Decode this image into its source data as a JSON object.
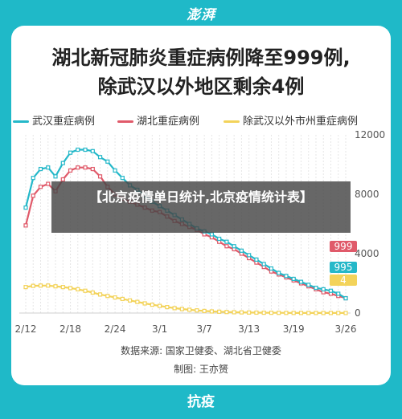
{
  "brand": "澎湃",
  "title_line1": "湖北新冠肺炎重症病例降至999例,",
  "title_line2": "除武汉以外地区剩余4例",
  "overlay_text": "【北京疫情单日统计,北京疫情统计表】",
  "source_line": "数据来源: 国家卫健委、湖北省卫健委",
  "author_line": "制图: 王亦赟",
  "footer": "抗疫",
  "colors": {
    "wuhan": "#25b8c9",
    "hubei": "#e05a6a",
    "other": "#f3d35a",
    "frame": "#1fb9c8"
  },
  "chart_data": {
    "type": "line",
    "x": [
      "2/12",
      "2/13",
      "2/14",
      "2/15",
      "2/16",
      "2/17",
      "2/18",
      "2/19",
      "2/20",
      "2/21",
      "2/22",
      "2/23",
      "2/24",
      "2/25",
      "2/26",
      "2/27",
      "2/28",
      "2/29",
      "3/1",
      "3/2",
      "3/3",
      "3/4",
      "3/5",
      "3/6",
      "3/7",
      "3/8",
      "3/9",
      "3/10",
      "3/11",
      "3/12",
      "3/13",
      "3/14",
      "3/15",
      "3/16",
      "3/17",
      "3/18",
      "3/19",
      "3/20",
      "3/21",
      "3/22",
      "3/23",
      "3/24",
      "3/25",
      "3/26"
    ],
    "xticks": [
      "2/12",
      "2/18",
      "2/24",
      "3/1",
      "3/7",
      "3/13",
      "3/19",
      "3/26"
    ],
    "ylim": [
      0,
      12000
    ],
    "yticks": [
      0,
      4000,
      8000,
      12000
    ],
    "series": [
      {
        "name": "武汉重症病例",
        "color": "#25b8c9",
        "values": [
          7100,
          9100,
          9700,
          9800,
          9200,
          10100,
          10800,
          11000,
          11000,
          10900,
          10500,
          10200,
          9600,
          9100,
          8600,
          8300,
          7900,
          7500,
          7200,
          6900,
          6600,
          6300,
          6000,
          5700,
          5500,
          5300,
          5000,
          4800,
          4500,
          4200,
          3900,
          3600,
          3300,
          3000,
          2700,
          2500,
          2300,
          2100,
          1900,
          1700,
          1600,
          1500,
          1300,
          995
        ]
      },
      {
        "name": "湖北重症病例",
        "color": "#e05a6a",
        "values": [
          5900,
          7900,
          8500,
          8700,
          8200,
          9000,
          9600,
          9800,
          9800,
          9700,
          9200,
          8500,
          8000,
          7700,
          7500,
          7300,
          7100,
          6900,
          6800,
          6500,
          6200,
          6000,
          5800,
          5600,
          5300,
          5100,
          4800,
          4500,
          4300,
          4000,
          3700,
          3400,
          3100,
          2800,
          2600,
          2400,
          2200,
          2000,
          1800,
          1600,
          1400,
          1300,
          1150,
          999
        ]
      },
      {
        "name": "除武汉以外市州重症病例",
        "color": "#f3d35a",
        "values": [
          1750,
          1830,
          1850,
          1850,
          1800,
          1750,
          1680,
          1600,
          1500,
          1380,
          1250,
          1150,
          1050,
          950,
          850,
          750,
          650,
          560,
          480,
          400,
          330,
          270,
          220,
          180,
          140,
          110,
          90,
          70,
          55,
          45,
          35,
          28,
          22,
          18,
          14,
          10,
          8,
          6,
          5,
          5,
          4,
          4,
          4,
          4
        ]
      }
    ],
    "end_labels": [
      "999",
      "995",
      "4"
    ]
  }
}
